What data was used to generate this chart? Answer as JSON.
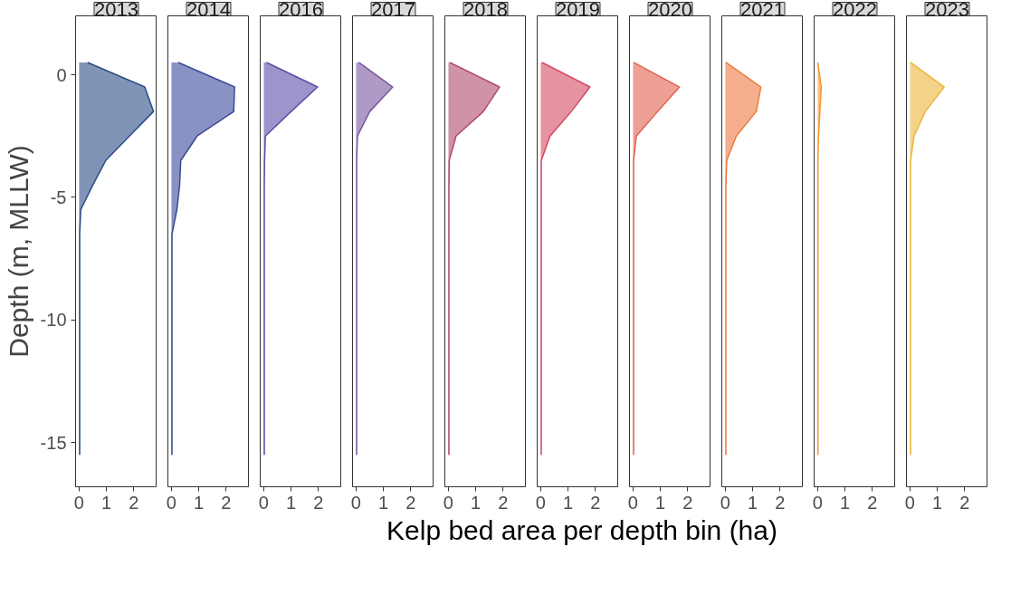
{
  "chart_data": [
    {
      "type": "area",
      "orientation": "horizontal",
      "title": "2013",
      "ylabel": "Depth (m, MLLW)",
      "x": [
        0.5,
        -0.5,
        -1.5,
        -2.5,
        -3.5,
        -4.5,
        -5.5,
        -6.5,
        -7.5,
        -8.5,
        -9.5,
        -10.5,
        -11.5,
        -12.5,
        -13.5,
        -14.5,
        -15.5
      ],
      "series": [
        {
          "color": "#2b4c85",
          "values": [
            0.31,
            2.4,
            2.72,
            1.84,
            0.97,
            0.5,
            0.06,
            0.02,
            0.02,
            0.02,
            0.02,
            0.02,
            0.02,
            0.02,
            0.02,
            0.02,
            0.02
          ]
        }
      ],
      "xlim": [
        -0.13,
        2.85
      ],
      "xticks": [
        0,
        1,
        2
      ],
      "ylim": [
        -16.8,
        2.4
      ],
      "yticks": [
        0,
        -5,
        -10,
        -15
      ]
    },
    {
      "type": "area",
      "orientation": "horizontal",
      "title": "2014",
      "x": [
        0.5,
        -0.5,
        -1.5,
        -2.5,
        -3.5,
        -4.5,
        -5.5,
        -6.5,
        -7.5,
        -8.5,
        -9.5,
        -10.5,
        -11.5,
        -12.5,
        -13.5,
        -14.5,
        -15.5
      ],
      "series": [
        {
          "color": "#3a4a9a",
          "values": [
            0.25,
            2.31,
            2.28,
            0.94,
            0.34,
            0.3,
            0.2,
            0.02,
            0.02,
            0.02,
            0.02,
            0.02,
            0.02,
            0.02,
            0.02,
            0.02,
            0.02
          ]
        }
      ],
      "xlim": [
        -0.13,
        2.85
      ],
      "xticks": [
        0,
        1,
        2
      ],
      "ylim": [
        -16.8,
        2.4
      ],
      "yticks": [
        0,
        -5,
        -10,
        -15
      ],
      "tick_labels": "x"
    },
    {
      "type": "area",
      "orientation": "horizontal",
      "title": "2016",
      "x": [
        0.5,
        -0.5,
        -1.5,
        -2.5,
        -3.5,
        -4.5,
        -5.5,
        -6.5,
        -7.5,
        -8.5,
        -9.5,
        -10.5,
        -11.5,
        -12.5,
        -13.5,
        -14.5,
        -15.5
      ],
      "series": [
        {
          "color": "#5a4fa8",
          "values": [
            0.1,
            1.97,
            1.0,
            0.06,
            0.03,
            0.02,
            0.02,
            0.02,
            0.02,
            0.02,
            0.02,
            0.02,
            0.02,
            0.02,
            0.02,
            0.02,
            0.02
          ]
        }
      ],
      "xlim": [
        -0.13,
        2.85
      ],
      "xticks": [
        0,
        1,
        2
      ],
      "ylim": [
        -16.8,
        2.4
      ],
      "yticks": [
        0,
        -5,
        -10,
        -15
      ],
      "tick_labels": "x"
    },
    {
      "type": "area",
      "orientation": "horizontal",
      "title": "2017",
      "x": [
        0.5,
        -0.5,
        -1.5,
        -2.5,
        -3.5,
        -4.5,
        -5.5,
        -6.5,
        -7.5,
        -8.5,
        -9.5,
        -10.5,
        -11.5,
        -12.5,
        -13.5,
        -14.5,
        -15.5
      ],
      "series": [
        {
          "color": "#7a56a0",
          "values": [
            0.1,
            1.34,
            0.5,
            0.05,
            0.02,
            0.02,
            0.02,
            0.02,
            0.02,
            0.02,
            0.02,
            0.02,
            0.02,
            0.02,
            0.02,
            0.02,
            0.02
          ]
        }
      ],
      "xlim": [
        -0.13,
        2.85
      ],
      "xticks": [
        0,
        1,
        2
      ],
      "ylim": [
        -16.8,
        2.4
      ],
      "yticks": [
        0,
        -5,
        -10,
        -15
      ],
      "tick_labels": "x"
    },
    {
      "type": "area",
      "orientation": "horizontal",
      "title": "2018",
      "x": [
        0.5,
        -0.5,
        -1.5,
        -2.5,
        -3.5,
        -4.5,
        -5.5,
        -6.5,
        -7.5,
        -8.5,
        -9.5,
        -10.5,
        -11.5,
        -12.5,
        -13.5,
        -14.5,
        -15.5
      ],
      "series": [
        {
          "color": "#b04a70",
          "values": [
            0.05,
            1.87,
            1.28,
            0.28,
            0.03,
            0.02,
            0.02,
            0.02,
            0.02,
            0.02,
            0.02,
            0.02,
            0.02,
            0.02,
            0.02,
            0.02,
            0.02
          ]
        }
      ],
      "xlim": [
        -0.13,
        2.85
      ],
      "xticks": [
        0,
        1,
        2
      ],
      "ylim": [
        -16.8,
        2.4
      ],
      "yticks": [
        0,
        -5,
        -10,
        -15
      ],
      "tick_labels": "x"
    },
    {
      "type": "area",
      "orientation": "horizontal",
      "title": "2019",
      "xlabel": "Kelp bed area per depth bin (ha)",
      "x": [
        0.5,
        -0.5,
        -1.5,
        -2.5,
        -3.5,
        -4.5,
        -5.5,
        -6.5,
        -7.5,
        -8.5,
        -9.5,
        -10.5,
        -11.5,
        -12.5,
        -13.5,
        -14.5,
        -15.5
      ],
      "series": [
        {
          "color": "#d44a62",
          "values": [
            0.05,
            1.8,
            1.12,
            0.34,
            0.02,
            0.02,
            0.02,
            0.02,
            0.02,
            0.02,
            0.02,
            0.02,
            0.02,
            0.02,
            0.02,
            0.02,
            0.02
          ]
        }
      ],
      "xlim": [
        -0.13,
        2.85
      ],
      "xticks": [
        0,
        1,
        2
      ],
      "ylim": [
        -16.8,
        2.4
      ],
      "yticks": [
        0,
        -5,
        -10,
        -15
      ],
      "tick_labels": "x"
    },
    {
      "type": "area",
      "orientation": "horizontal",
      "title": "2020",
      "x": [
        0.5,
        -0.5,
        -1.5,
        -2.5,
        -3.5,
        -4.5,
        -5.5,
        -6.5,
        -7.5,
        -8.5,
        -9.5,
        -10.5,
        -11.5,
        -12.5,
        -13.5,
        -14.5,
        -15.5
      ],
      "series": [
        {
          "color": "#e2604f",
          "values": [
            0.02,
            1.7,
            0.9,
            0.12,
            0.02,
            0.02,
            0.02,
            0.02,
            0.02,
            0.02,
            0.02,
            0.02,
            0.02,
            0.02,
            0.02,
            0.02,
            0.02
          ]
        }
      ],
      "xlim": [
        -0.13,
        2.85
      ],
      "xticks": [
        0,
        1,
        2
      ],
      "ylim": [
        -16.8,
        2.4
      ],
      "yticks": [
        0,
        -5,
        -10,
        -15
      ],
      "tick_labels": "x"
    },
    {
      "type": "area",
      "orientation": "horizontal",
      "title": "2021",
      "x": [
        0.5,
        -0.5,
        -1.5,
        -2.5,
        -3.5,
        -4.5,
        -5.5,
        -6.5,
        -7.5,
        -8.5,
        -9.5,
        -10.5,
        -11.5,
        -12.5,
        -13.5,
        -14.5,
        -15.5
      ],
      "series": [
        {
          "color": "#ee7a40",
          "values": [
            0.02,
            1.3,
            1.13,
            0.4,
            0.05,
            0.02,
            0.02,
            0.02,
            0.02,
            0.02,
            0.02,
            0.02,
            0.02,
            0.02,
            0.02,
            0.02,
            0.02
          ]
        }
      ],
      "xlim": [
        -0.13,
        2.85
      ],
      "xticks": [
        0,
        1,
        2
      ],
      "ylim": [
        -16.8,
        2.4
      ],
      "yticks": [
        0,
        -5,
        -10,
        -15
      ],
      "tick_labels": "x"
    },
    {
      "type": "area",
      "orientation": "horizontal",
      "title": "2022",
      "x": [
        0.5,
        -0.5,
        -1.5,
        -2.5,
        -3.5,
        -4.5,
        -5.5,
        -6.5,
        -7.5,
        -8.5,
        -9.5,
        -10.5,
        -11.5,
        -12.5,
        -13.5,
        -14.5,
        -15.5
      ],
      "series": [
        {
          "color": "#f29630",
          "values": [
            0.0,
            0.13,
            0.08,
            0.03,
            0.01,
            0.01,
            0.01,
            0.01,
            0.01,
            0.01,
            0.01,
            0.01,
            0.01,
            0.01,
            0.01,
            0.01,
            0.01
          ]
        }
      ],
      "xlim": [
        -0.13,
        2.85
      ],
      "xticks": [
        0,
        1,
        2
      ],
      "ylim": [
        -16.8,
        2.4
      ],
      "yticks": [
        0,
        -5,
        -10,
        -15
      ],
      "tick_labels": "x"
    },
    {
      "type": "area",
      "orientation": "horizontal",
      "title": "2023",
      "x": [
        0.5,
        -0.5,
        -1.5,
        -2.5,
        -3.5,
        -4.5,
        -5.5,
        -6.5,
        -7.5,
        -8.5,
        -9.5,
        -10.5,
        -11.5,
        -12.5,
        -13.5,
        -14.5,
        -15.5
      ],
      "series": [
        {
          "color": "#edb53a",
          "values": [
            0.02,
            1.25,
            0.56,
            0.15,
            0.02,
            0.02,
            0.02,
            0.02,
            0.02,
            0.02,
            0.02,
            0.02,
            0.02,
            0.02,
            0.02,
            0.02,
            0.02
          ]
        }
      ],
      "xlim": [
        -0.13,
        2.85
      ],
      "xticks": [
        0,
        1,
        2
      ],
      "ylim": [
        -16.8,
        2.4
      ],
      "yticks": [
        0,
        -5,
        -10,
        -15
      ],
      "tick_labels": "x"
    }
  ]
}
